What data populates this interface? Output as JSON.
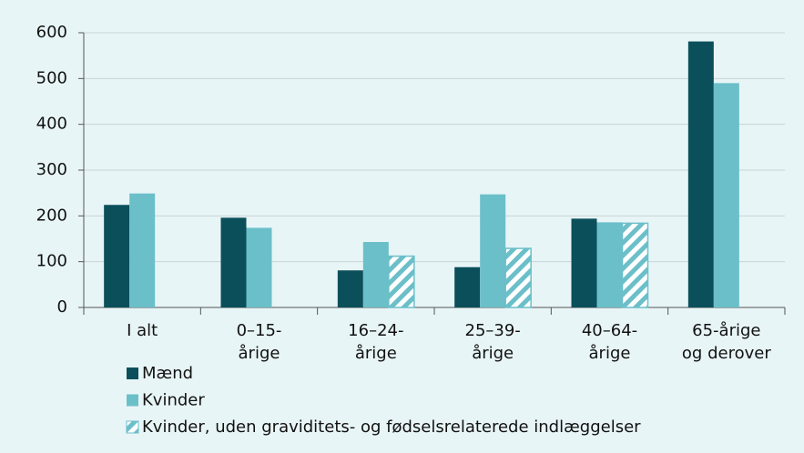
{
  "chart_data": {
    "type": "bar",
    "categories": [
      [
        "I alt"
      ],
      [
        "0–15-",
        "årige"
      ],
      [
        "16–24-",
        "årige"
      ],
      [
        "25–39-",
        "årige"
      ],
      [
        "40–64-",
        "årige"
      ],
      [
        "65-årige",
        "og derover"
      ]
    ],
    "series": [
      {
        "name": "Mænd",
        "color": "#0b4f5b",
        "values": [
          224,
          196,
          81,
          88,
          194,
          581
        ]
      },
      {
        "name": "Kvinder",
        "color": "#6bbfc9",
        "values": [
          249,
          174,
          143,
          247,
          186,
          490
        ]
      },
      {
        "name": "Kvinder, uden graviditets- og fødselsrelaterede indlæggelser",
        "color": "#6bbfc9",
        "hatch": true,
        "values": [
          null,
          null,
          112,
          129,
          184,
          null
        ]
      }
    ],
    "ylim": [
      0,
      600
    ],
    "yticks": [
      0,
      100,
      200,
      300,
      400,
      500,
      600
    ],
    "grid": true
  }
}
